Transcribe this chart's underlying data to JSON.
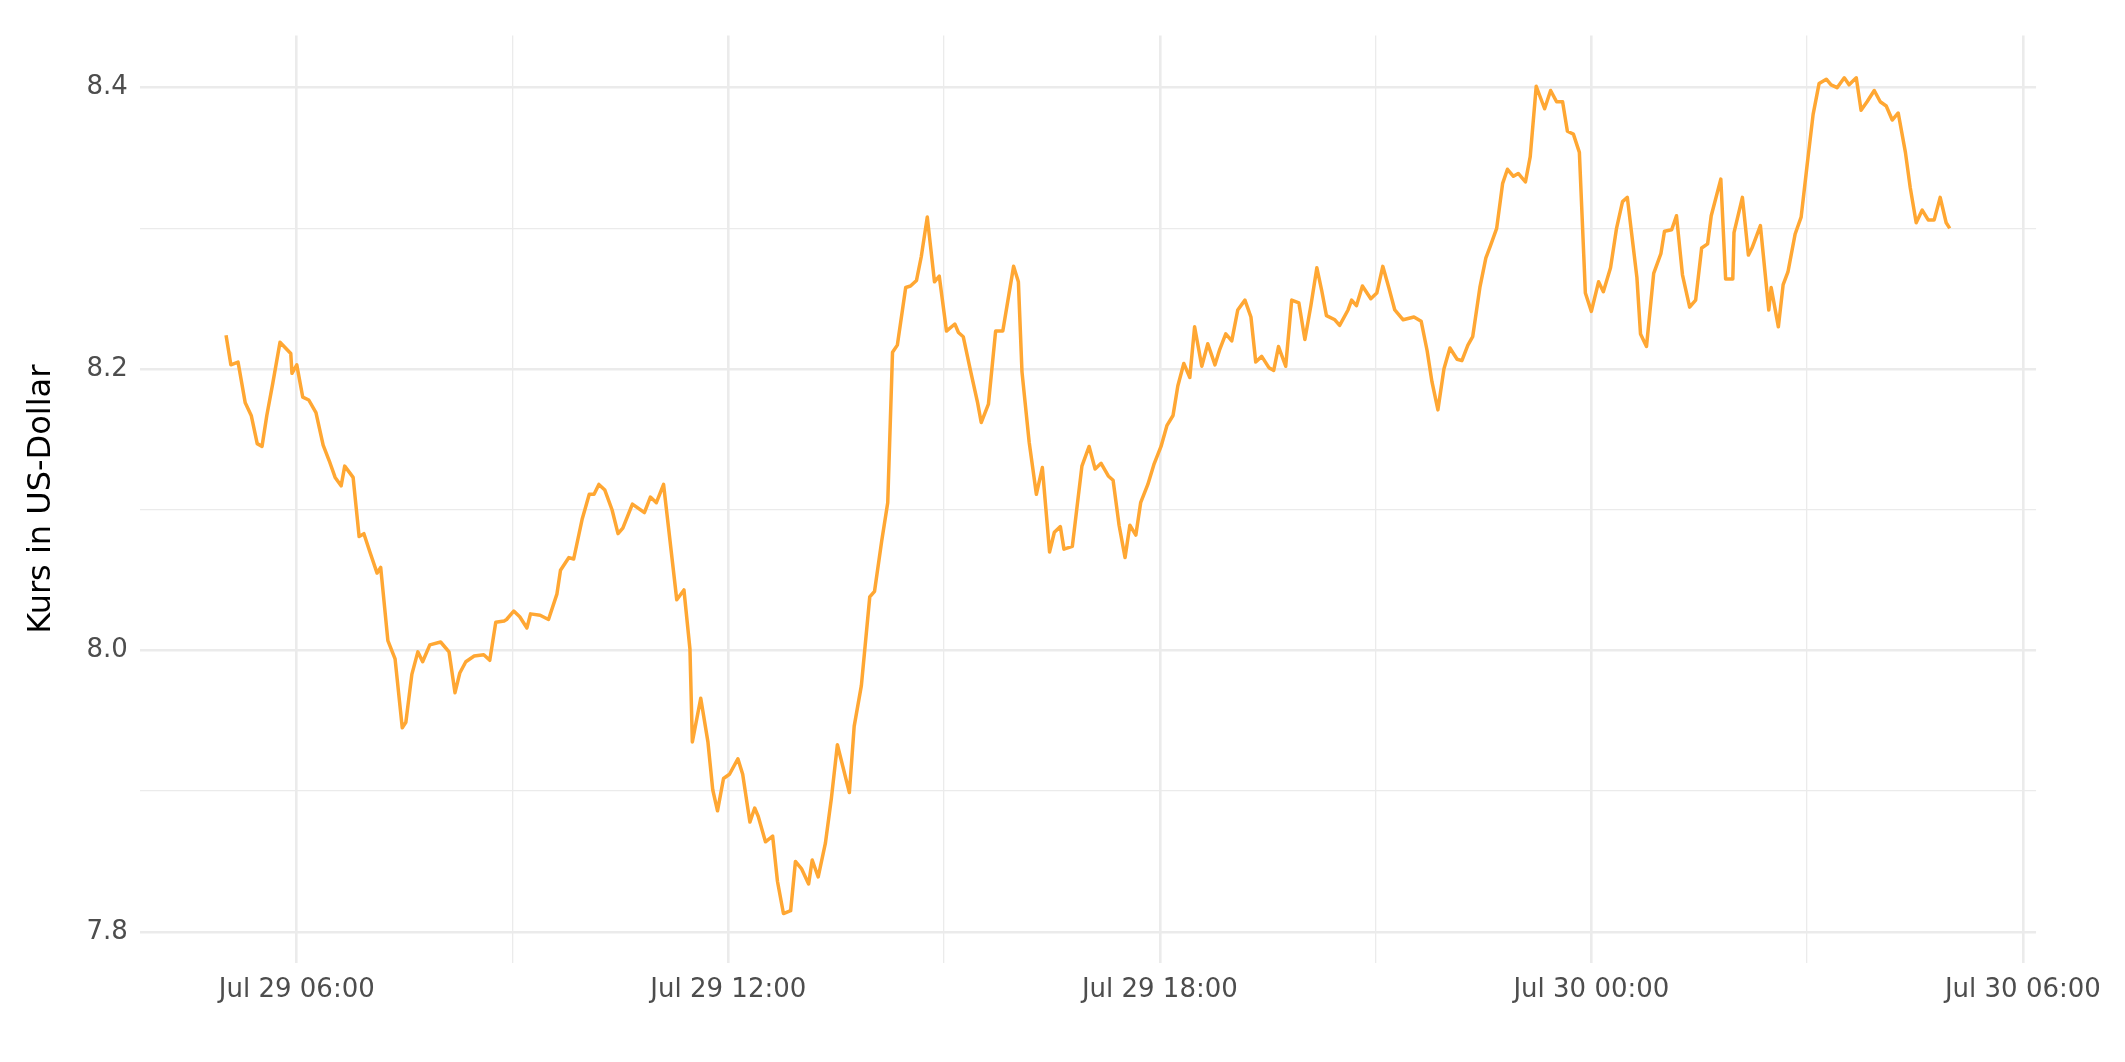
{
  "chart_data": {
    "type": "line",
    "ylabel": "Kurs in US-Dollar",
    "marker": "none",
    "grid": true,
    "xlim": [
      "--07-29T03:49",
      "--07-30T06:11"
    ],
    "ylim": [
      7.778,
      8.437
    ],
    "xticks": [
      {
        "value": "--07-29T06:00",
        "label": "Jul 29 06:00"
      },
      {
        "value": "--07-29T09:00",
        "label": null
      },
      {
        "value": "--07-29T12:00",
        "label": "Jul 29 12:00"
      },
      {
        "value": "--07-29T15:00",
        "label": null
      },
      {
        "value": "--07-29T18:00",
        "label": "Jul 29 18:00"
      },
      {
        "value": "--07-29T21:00",
        "label": null
      },
      {
        "value": "--07-30T00:00",
        "label": "Jul 30 00:00"
      },
      {
        "value": "--07-30T03:00",
        "label": null
      },
      {
        "value": "--07-30T06:00",
        "label": "Jul 30 06:00"
      }
    ],
    "yticks": [
      7.8,
      {
        "value": 7.9,
        "label": null
      },
      {
        "value": 8.0,
        "label": "8.0"
      },
      {
        "value": 8.1,
        "label": null
      },
      8.2,
      {
        "value": 8.3,
        "label": null
      },
      8.4
    ],
    "series": [
      {
        "color": "#ffa733",
        "x": [
          "--07-29T05:01",
          "--07-29T05:05",
          "--07-29T05:11",
          "--07-29T05:17",
          "--07-29T05:22",
          "--07-29T05:27",
          "--07-29T05:31",
          "--07-29T05:35",
          "--07-29T05:40",
          "--07-29T05:46",
          "--07-29T05:55",
          "--07-29T05:56",
          "--07-29T06:00",
          "--07-29T06:05",
          "--07-29T06:10",
          "--07-29T06:16",
          "--07-29T06:22",
          "--07-29T06:27",
          "--07-29T06:32",
          "--07-29T06:37",
          "--07-29T06:40",
          "--07-29T06:47",
          "--07-29T06:52",
          "--07-29T06:56",
          "--07-29T07:01",
          "--07-29T07:07",
          "--07-29T07:10",
          "--07-29T07:16",
          "--07-29T07:22",
          "--07-29T07:28",
          "--07-29T07:31",
          "--07-29T07:36",
          "--07-29T07:41",
          "--07-29T07:45",
          "--07-29T07:51",
          "--07-29T08:00",
          "--07-29T08:07",
          "--07-29T08:12",
          "--07-29T08:16",
          "--07-29T08:21",
          "--07-29T08:28",
          "--07-29T08:36",
          "--07-29T08:41",
          "--07-29T08:46",
          "--07-29T08:53",
          "--07-29T08:55",
          "--07-29T09:01",
          "--07-29T09:06",
          "--07-29T09:12",
          "--07-29T09:15",
          "--07-29T09:23",
          "--07-29T09:30",
          "--07-29T09:37",
          "--07-29T09:40",
          "--07-29T09:47",
          "--07-29T09:51",
          "--07-29T09:58",
          "--07-29T10:04",
          "--07-29T10:08",
          "--07-29T10:12",
          "--07-29T10:17",
          "--07-29T10:23",
          "--07-29T10:28",
          "--07-29T10:32",
          "--07-29T10:40",
          "--07-29T10:50",
          "--07-29T10:55",
          "--07-29T11:00",
          "--07-29T11:06",
          "--07-29T11:17",
          "--07-29T11:23",
          "--07-29T11:28",
          "--07-29T11:30",
          "--07-29T11:37",
          "--07-29T11:43",
          "--07-29T11:47",
          "--07-29T11:51",
          "--07-29T11:56",
          "--07-29T12:01",
          "--07-29T12:08",
          "--07-29T12:12",
          "--07-29T12:18",
          "--07-29T12:22",
          "--07-29T12:25",
          "--07-29T12:31",
          "--07-29T12:37",
          "--07-29T12:41",
          "--07-29T12:46",
          "--07-29T12:52",
          "--07-29T12:56",
          "--07-29T13:01",
          "--07-29T13:07",
          "--07-29T13:10",
          "--07-29T13:15",
          "--07-29T13:21",
          "--07-29T13:26",
          "--07-29T13:31",
          "--07-29T13:41",
          "--07-29T13:45",
          "--07-29T13:51",
          "--07-29T13:58",
          "--07-29T14:02",
          "--07-29T14:08",
          "--07-29T14:13",
          "--07-29T14:17",
          "--07-29T14:21",
          "--07-29T14:28",
          "--07-29T14:32",
          "--07-29T14:37",
          "--07-29T14:41",
          "--07-29T14:46",
          "--07-29T14:52",
          "--07-29T14:56",
          "--07-29T15:02",
          "--07-29T15:09",
          "--07-29T15:12",
          "--07-29T15:16",
          "--07-29T15:22",
          "--07-29T15:28",
          "--07-29T15:31",
          "--07-29T15:37",
          "--07-29T15:43",
          "--07-29T15:49",
          "--07-29T15:58",
          "--07-29T16:02",
          "--07-29T16:05",
          "--07-29T16:11",
          "--07-29T16:17",
          "--07-29T16:22",
          "--07-29T16:28",
          "--07-29T16:32",
          "--07-29T16:37",
          "--07-29T16:40",
          "--07-29T16:47",
          "--07-29T16:55",
          "--07-29T17:01",
          "--07-29T17:06",
          "--07-29T17:11",
          "--07-29T17:17",
          "--07-29T17:21",
          "--07-29T17:26",
          "--07-29T17:31",
          "--07-29T17:35",
          "--07-29T17:40",
          "--07-29T17:44",
          "--07-29T17:50",
          "--07-29T17:55",
          "--07-29T18:01",
          "--07-29T18:06",
          "--07-29T18:11",
          "--07-29T18:15",
          "--07-29T18:20",
          "--07-29T18:25",
          "--07-29T18:29",
          "--07-29T18:35",
          "--07-29T18:40",
          "--07-29T18:46",
          "--07-29T18:50",
          "--07-29T18:55",
          "--07-29T19:00",
          "--07-29T19:05",
          "--07-29T19:11",
          "--07-29T19:16",
          "--07-29T19:20",
          "--07-29T19:25",
          "--07-29T19:31",
          "--07-29T19:35",
          "--07-29T19:39",
          "--07-29T19:45",
          "--07-29T19:50",
          "--07-29T19:56",
          "--07-29T20:01",
          "--07-29T20:06",
          "--07-29T20:11",
          "--07-29T20:15",
          "--07-29T20:19",
          "--07-29T20:26",
          "--07-29T20:30",
          "--07-29T20:37",
          "--07-29T20:40",
          "--07-29T20:44",
          "--07-29T20:49",
          "--07-29T20:56",
          "--07-29T21:01",
          "--07-29T21:06",
          "--07-29T21:11",
          "--07-29T21:16",
          "--07-29T21:23",
          "--07-29T21:32",
          "--07-29T21:38",
          "--07-29T21:43",
          "--07-29T21:47",
          "--07-29T21:52",
          "--07-29T21:57",
          "--07-29T22:02",
          "--07-29T22:08",
          "--07-29T22:12",
          "--07-29T22:17",
          "--07-29T22:21",
          "--07-29T22:27",
          "--07-29T22:32",
          "--07-29T22:36",
          "--07-29T22:41",
          "--07-29T22:46",
          "--07-29T22:50",
          "--07-29T22:55",
          "--07-29T22:59",
          "--07-29T23:05",
          "--07-29T23:09",
          "--07-29T23:14",
          "--07-29T23:21",
          "--07-29T23:26",
          "--07-29T23:31",
          "--07-29T23:36",
          "--07-29T23:40",
          "--07-29T23:45",
          "--07-29T23:50",
          "--07-29T23:55",
          "--07-30T00:00",
          "--07-30T00:06",
          "--07-30T00:10",
          "--07-30T00:16",
          "--07-30T00:21",
          "--07-30T00:26",
          "--07-30T00:30",
          "--07-30T00:38",
          "--07-30T00:41",
          "--07-30T00:46",
          "--07-30T00:52",
          "--07-30T00:58",
          "--07-30T01:01",
          "--07-30T01:07",
          "--07-30T01:11",
          "--07-30T01:16",
          "--07-30T01:22",
          "--07-30T01:27",
          "--07-30T01:32",
          "--07-30T01:37",
          "--07-30T01:40",
          "--07-30T01:48",
          "--07-30T01:52",
          "--07-30T01:58",
          "--07-30T01:59",
          "--07-30T02:06",
          "--07-30T02:11",
          "--07-30T02:14",
          "--07-30T02:21",
          "--07-30T02:28",
          "--07-30T02:30",
          "--07-30T02:36",
          "--07-30T02:40",
          "--07-30T02:44",
          "--07-30T02:50",
          "--07-30T02:55",
          "--07-30T03:00",
          "--07-30T03:05",
          "--07-30T03:10",
          "--07-30T03:16",
          "--07-30T03:20",
          "--07-30T03:25",
          "--07-30T03:31",
          "--07-30T03:35",
          "--07-30T03:41",
          "--07-30T03:45",
          "--07-30T03:50",
          "--07-30T03:56",
          "--07-30T04:01",
          "--07-30T04:06",
          "--07-30T04:11",
          "--07-30T04:16",
          "--07-30T04:22",
          "--07-30T04:26",
          "--07-30T04:31",
          "--07-30T04:36",
          "--07-30T04:41",
          "--07-30T04:46",
          "--07-30T04:51",
          "--07-30T04:56",
          "--07-30T04:59"
        ],
        "values": [
          8.224,
          8.203,
          8.205,
          8.176,
          8.167,
          8.147,
          8.145,
          8.167,
          8.19,
          8.219,
          8.211,
          8.197,
          8.203,
          8.18,
          8.178,
          8.169,
          8.146,
          8.135,
          8.123,
          8.117,
          8.131,
          8.123,
          8.081,
          8.083,
          8.07,
          8.055,
          8.059,
          8.007,
          7.994,
          7.945,
          7.949,
          7.983,
          7.999,
          7.992,
          8.004,
          8.006,
          7.999,
          7.97,
          7.984,
          7.992,
          7.996,
          7.997,
          7.993,
          8.02,
          8.021,
          8.022,
          8.028,
          8.024,
          8.016,
          8.026,
          8.025,
          8.022,
          8.04,
          8.057,
          8.066,
          8.065,
          8.093,
          8.111,
          8.111,
          8.118,
          8.114,
          8.1,
          8.083,
          8.087,
          8.104,
          8.098,
          8.109,
          8.105,
          8.118,
          8.036,
          8.043,
          8.001,
          7.935,
          7.966,
          7.935,
          7.901,
          7.886,
          7.909,
          7.912,
          7.923,
          7.912,
          7.878,
          7.888,
          7.882,
          7.864,
          7.868,
          7.836,
          7.813,
          7.815,
          7.85,
          7.845,
          7.834,
          7.851,
          7.839,
          7.863,
          7.895,
          7.933,
          7.899,
          7.946,
          7.975,
          8.038,
          8.042,
          8.078,
          8.105,
          8.212,
          8.217,
          8.258,
          8.259,
          8.263,
          8.28,
          8.308,
          8.262,
          8.266,
          8.227,
          8.232,
          8.226,
          8.223,
          8.199,
          8.176,
          8.162,
          8.175,
          8.227,
          8.227,
          8.273,
          8.262,
          8.198,
          8.148,
          8.111,
          8.13,
          8.07,
          8.084,
          8.088,
          8.072,
          8.074,
          8.131,
          8.145,
          8.129,
          8.133,
          8.124,
          8.121,
          8.089,
          8.066,
          8.089,
          8.082,
          8.105,
          8.118,
          8.132,
          8.145,
          8.16,
          8.167,
          8.188,
          8.204,
          8.194,
          8.23,
          8.202,
          8.218,
          8.203,
          8.214,
          8.225,
          8.22,
          8.242,
          8.249,
          8.237,
          8.205,
          8.209,
          8.201,
          8.199,
          8.216,
          8.202,
          8.249,
          8.247,
          8.221,
          8.245,
          8.272,
          8.256,
          8.238,
          8.235,
          8.231,
          8.242,
          8.249,
          8.245,
          8.259,
          8.25,
          8.254,
          8.273,
          8.258,
          8.242,
          8.235,
          8.237,
          8.234,
          8.213,
          8.191,
          8.171,
          8.2,
          8.215,
          8.207,
          8.206,
          8.217,
          8.223,
          8.258,
          8.279,
          8.288,
          8.3,
          8.332,
          8.342,
          8.337,
          8.339,
          8.333,
          8.351,
          8.401,
          8.385,
          8.398,
          8.39,
          8.39,
          8.369,
          8.367,
          8.354,
          8.254,
          8.241,
          8.262,
          8.255,
          8.272,
          8.3,
          8.319,
          8.322,
          8.265,
          8.225,
          8.216,
          8.268,
          8.282,
          8.298,
          8.299,
          8.309,
          8.267,
          8.244,
          8.249,
          8.286,
          8.289,
          8.309,
          8.335,
          8.264,
          8.264,
          8.297,
          8.322,
          8.281,
          8.286,
          8.302,
          8.242,
          8.258,
          8.23,
          8.26,
          8.269,
          8.296,
          8.308,
          8.345,
          8.381,
          8.403,
          8.406,
          8.402,
          8.4,
          8.407,
          8.402,
          8.407,
          8.384,
          8.39,
          8.398,
          8.39,
          8.387,
          8.377,
          8.382,
          8.354,
          8.329,
          8.304,
          8.313,
          8.306,
          8.306,
          8.322,
          8.304,
          8.3
        ]
      }
    ]
  }
}
